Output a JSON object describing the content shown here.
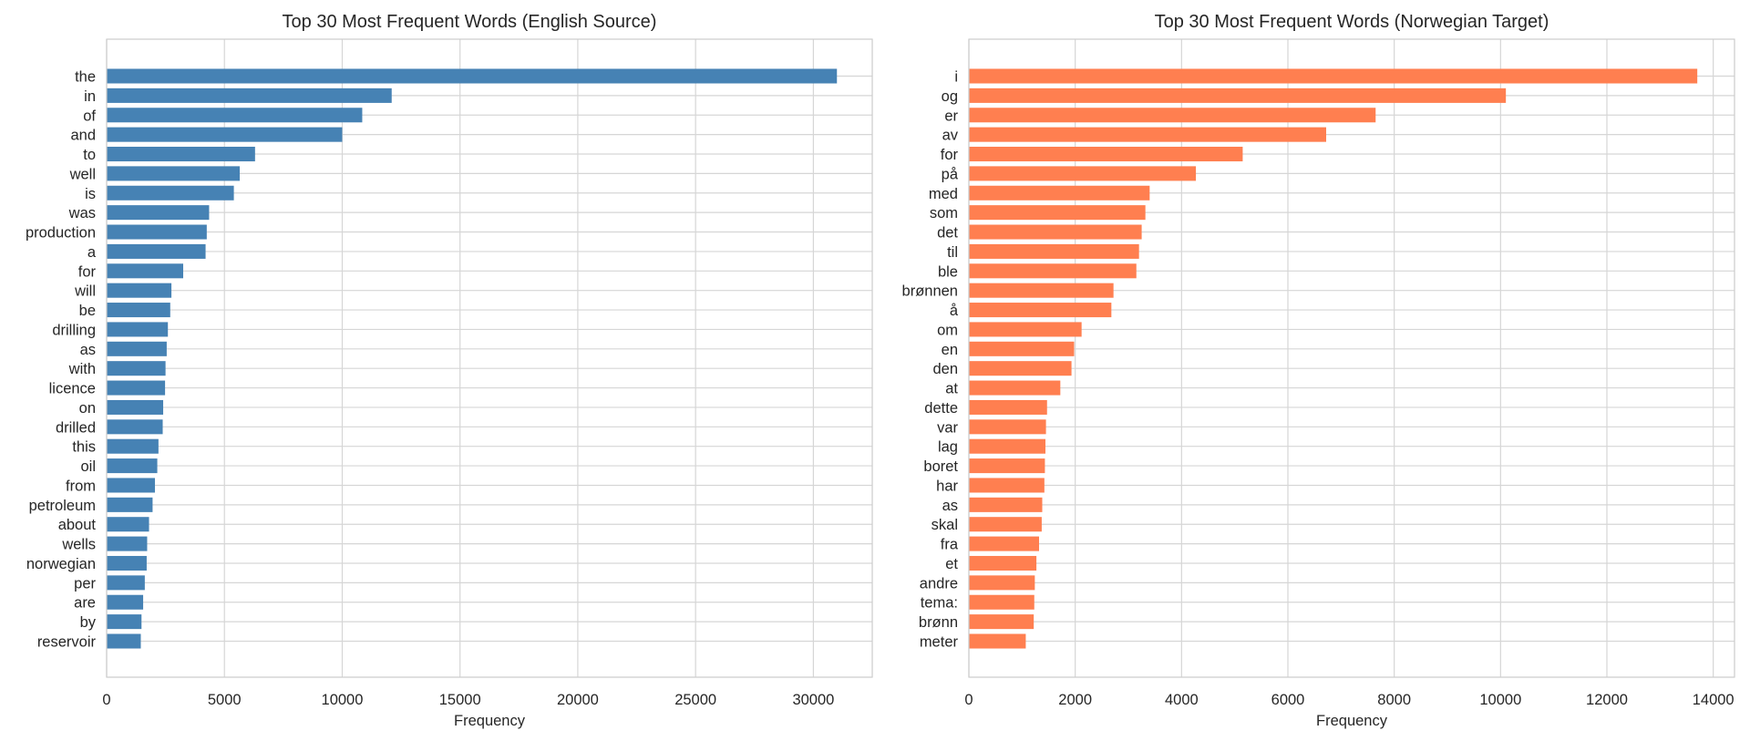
{
  "chart_data": [
    {
      "type": "bar",
      "orientation": "horizontal",
      "title": "Top 30 Most Frequent Words (English Source)",
      "xlabel": "Frequency",
      "ylabel": "",
      "xlim": [
        0,
        32500
      ],
      "xticks": [
        0,
        5000,
        10000,
        15000,
        20000,
        25000,
        30000
      ],
      "color": "#4682b4",
      "grid": true,
      "categories": [
        "the",
        "in",
        "of",
        "and",
        "to",
        "well",
        "is",
        "was",
        "production",
        "a",
        "for",
        "will",
        "be",
        "drilling",
        "as",
        "with",
        "licence",
        "on",
        "drilled",
        "this",
        "oil",
        "from",
        "petroleum",
        "about",
        "wells",
        "norwegian",
        "per",
        "are",
        "by",
        "reservoir"
      ],
      "values": [
        31000,
        12100,
        10850,
        10000,
        6300,
        5650,
        5400,
        4350,
        4250,
        4200,
        3250,
        2750,
        2700,
        2600,
        2550,
        2500,
        2480,
        2400,
        2380,
        2200,
        2150,
        2050,
        1950,
        1800,
        1720,
        1700,
        1620,
        1550,
        1480,
        1450
      ]
    },
    {
      "type": "bar",
      "orientation": "horizontal",
      "title": "Top 30 Most Frequent Words (Norwegian Target)",
      "xlabel": "Frequency",
      "ylabel": "",
      "xlim": [
        0,
        14400
      ],
      "xticks": [
        0,
        2000,
        4000,
        6000,
        8000,
        10000,
        12000,
        14000
      ],
      "color": "#ff7f50",
      "grid": true,
      "categories": [
        "i",
        "og",
        "er",
        "av",
        "for",
        "på",
        "med",
        "som",
        "det",
        "til",
        "ble",
        "brønnen",
        "å",
        "om",
        "en",
        "den",
        "at",
        "dette",
        "var",
        "lag",
        "boret",
        "har",
        "as",
        "skal",
        "fra",
        "et",
        "andre",
        "tema:",
        "brønn",
        "meter"
      ],
      "values": [
        13700,
        10100,
        7650,
        6720,
        5150,
        4270,
        3400,
        3320,
        3250,
        3200,
        3150,
        2720,
        2680,
        2120,
        1980,
        1930,
        1720,
        1470,
        1450,
        1440,
        1430,
        1420,
        1380,
        1370,
        1320,
        1270,
        1240,
        1230,
        1220,
        1070
      ]
    }
  ]
}
